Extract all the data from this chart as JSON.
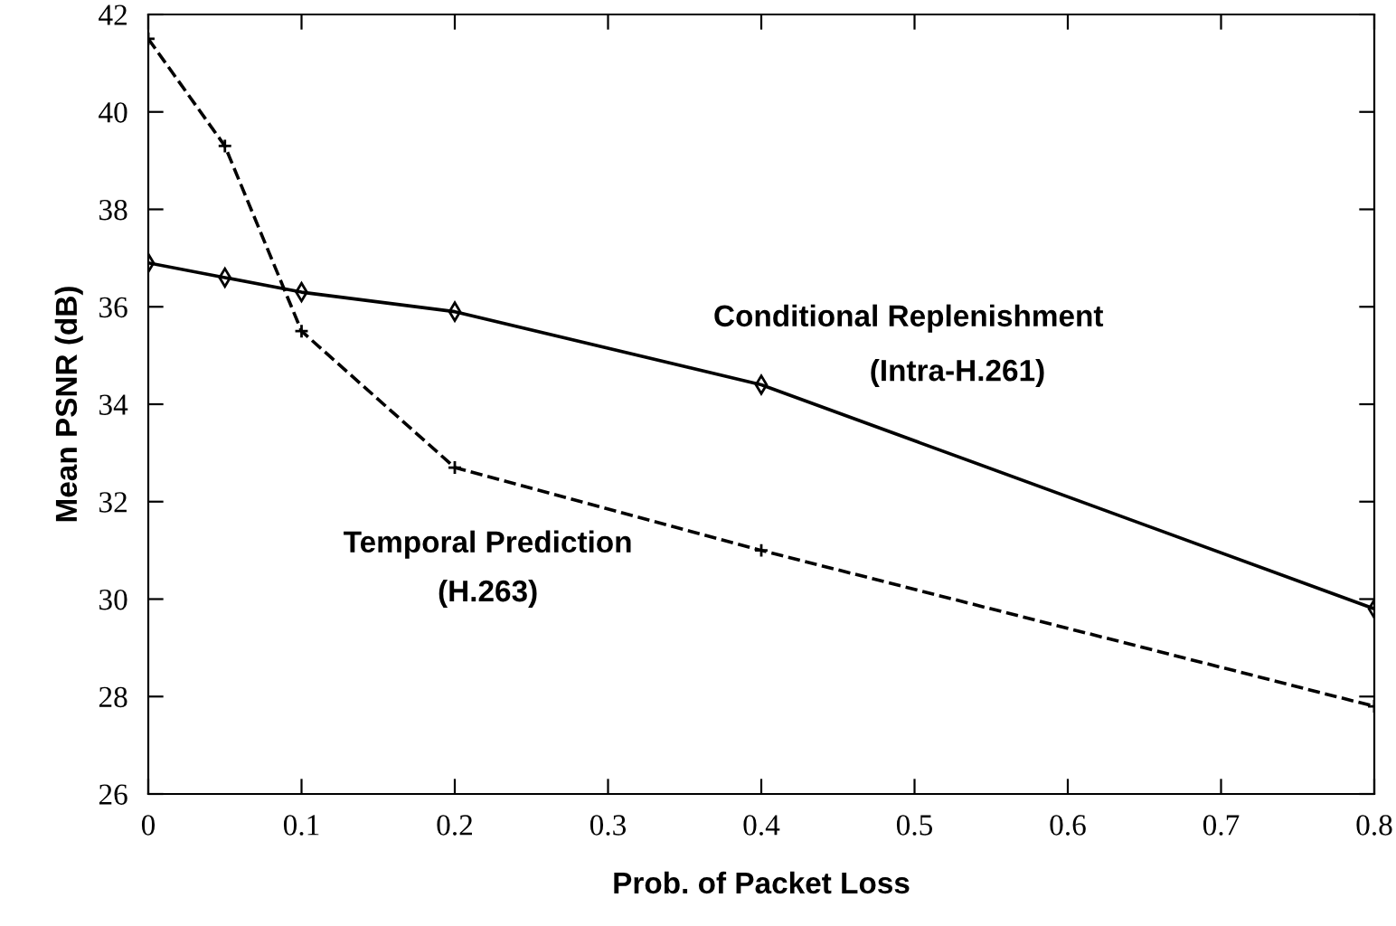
{
  "chart_data": {
    "type": "line",
    "xlabel": "Prob. of Packet Loss",
    "ylabel": "Mean PSNR (dB)",
    "x": [
      0,
      0.05,
      0.1,
      0.2,
      0.4,
      0.8
    ],
    "series": [
      {
        "color": "#000000",
        "marker": "diamond",
        "line_style": "solid",
        "values": [
          36.9,
          36.6,
          36.3,
          35.9,
          34.4,
          29.8
        ]
      },
      {
        "color": "#000000",
        "marker": "cross",
        "line_style": "dashed",
        "values": [
          41.5,
          39.3,
          35.5,
          32.7,
          31.0,
          27.8
        ]
      }
    ],
    "annotations": [
      "Conditional Replenishment",
      "(Intra-H.261)",
      "Temporal Prediction",
      "(H.263)"
    ],
    "xlim": [
      0,
      0.8
    ],
    "ylim": [
      26,
      42
    ],
    "xticks": [
      0,
      0.1,
      0.2,
      0.3,
      0.4,
      0.5,
      0.6,
      0.7,
      0.8
    ],
    "yticks": [
      26,
      28,
      30,
      32,
      34,
      36,
      38,
      40,
      42
    ],
    "grid": false,
    "legend": false
  }
}
